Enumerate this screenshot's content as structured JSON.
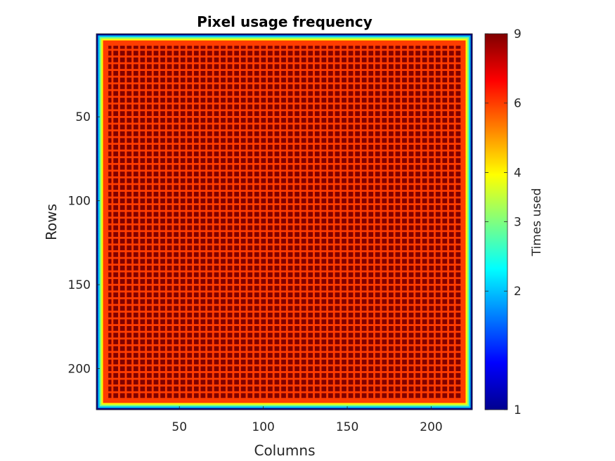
{
  "chart_data": {
    "type": "heatmap",
    "title": "Pixel usage frequency",
    "xlabel": "Columns",
    "ylabel": "Rows",
    "xlim": [
      0.5,
      224.5
    ],
    "ylim": [
      0.5,
      224.5
    ],
    "y_direction": "reversed",
    "x_ticks": [
      50,
      100,
      150,
      200
    ],
    "y_ticks": [
      50,
      100,
      150,
      200
    ],
    "grid": false,
    "n_rows": 224,
    "n_cols": 224,
    "colormap": "jet",
    "clim": [
      1,
      9
    ],
    "colorbar": {
      "label": "Times used",
      "ticks": [
        1,
        2,
        3,
        4,
        6,
        9
      ],
      "scale": "log",
      "placement": "right"
    },
    "block_size": 4,
    "pattern_description": "Interior dominated by value 9 with a grid of value-6 lines every 4 pixels; value drops toward the borders (6, 4, 3, 2, 1).",
    "value_profile_from_edge": [
      1,
      2,
      3,
      4,
      6,
      6,
      6,
      9
    ]
  }
}
